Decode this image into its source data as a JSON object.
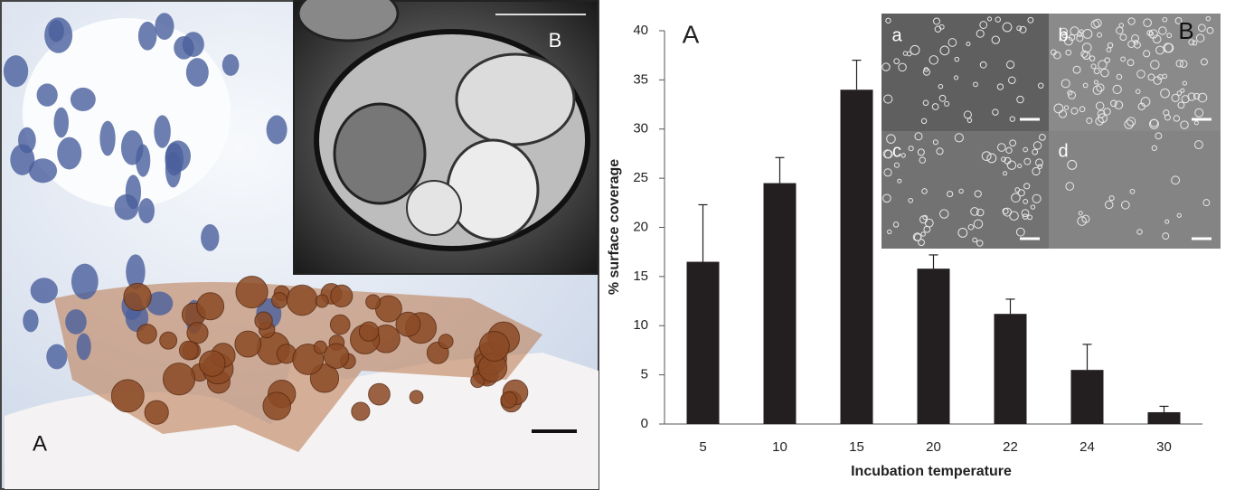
{
  "left_figure": {
    "labels": [
      "A",
      "B"
    ]
  },
  "chart_data": {
    "type": "bar",
    "panel_label": "A",
    "x_label": "Incubation temperature",
    "y_label": "% surface coverage",
    "categories": [
      "5",
      "10",
      "15",
      "20",
      "22",
      "24",
      "30"
    ],
    "values": [
      16.5,
      24.5,
      34,
      15.8,
      11.2,
      5.5,
      1.2
    ],
    "errors": [
      5.8,
      2.6,
      3,
      1.4,
      1.5,
      2.6,
      0.6
    ],
    "color": "#231f20",
    "ylim": [
      0,
      40
    ],
    "yticks": [
      0,
      5,
      10,
      15,
      20,
      25,
      30,
      35,
      40
    ],
    "inset": {
      "label": "B",
      "panels": [
        "a",
        "b",
        "c",
        "d"
      ]
    }
  }
}
